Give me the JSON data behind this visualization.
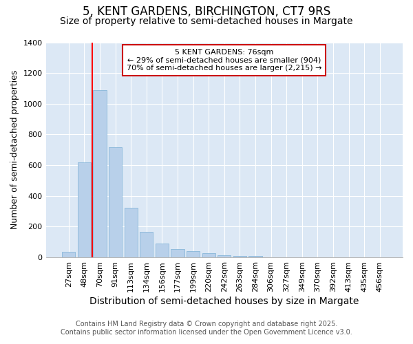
{
  "title": "5, KENT GARDENS, BIRCHINGTON, CT7 9RS",
  "subtitle": "Size of property relative to semi-detached houses in Margate",
  "xlabel": "Distribution of semi-detached houses by size in Margate",
  "ylabel": "Number of semi-detached properties",
  "footnote1": "Contains HM Land Registry data © Crown copyright and database right 2025.",
  "footnote2": "Contains public sector information licensed under the Open Government Licence v3.0.",
  "categories": [
    "27sqm",
    "48sqm",
    "70sqm",
    "91sqm",
    "113sqm",
    "134sqm",
    "156sqm",
    "177sqm",
    "199sqm",
    "220sqm",
    "242sqm",
    "263sqm",
    "284sqm",
    "306sqm",
    "327sqm",
    "349sqm",
    "370sqm",
    "392sqm",
    "413sqm",
    "435sqm",
    "456sqm"
  ],
  "values": [
    35,
    620,
    1090,
    715,
    325,
    165,
    90,
    55,
    40,
    25,
    15,
    10,
    10,
    2,
    1,
    1,
    0,
    0,
    0,
    0,
    0
  ],
  "bar_color": "#b8d0ea",
  "bar_edge_color": "#7aafd4",
  "plot_bg_color": "#dce8f5",
  "fig_bg_color": "#ffffff",
  "grid_color": "#ffffff",
  "red_line_index": 2,
  "annotation_text": "5 KENT GARDENS: 76sqm\n← 29% of semi-detached houses are smaller (904)\n70% of semi-detached houses are larger (2,215) →",
  "annotation_box_facecolor": "#ffffff",
  "annotation_box_edgecolor": "#cc0000",
  "ylim": [
    0,
    1400
  ],
  "yticks": [
    0,
    200,
    400,
    600,
    800,
    1000,
    1200,
    1400
  ],
  "title_fontsize": 12,
  "subtitle_fontsize": 10,
  "xlabel_fontsize": 10,
  "ylabel_fontsize": 9,
  "tick_fontsize": 8,
  "annotation_fontsize": 8,
  "footnote_fontsize": 7
}
